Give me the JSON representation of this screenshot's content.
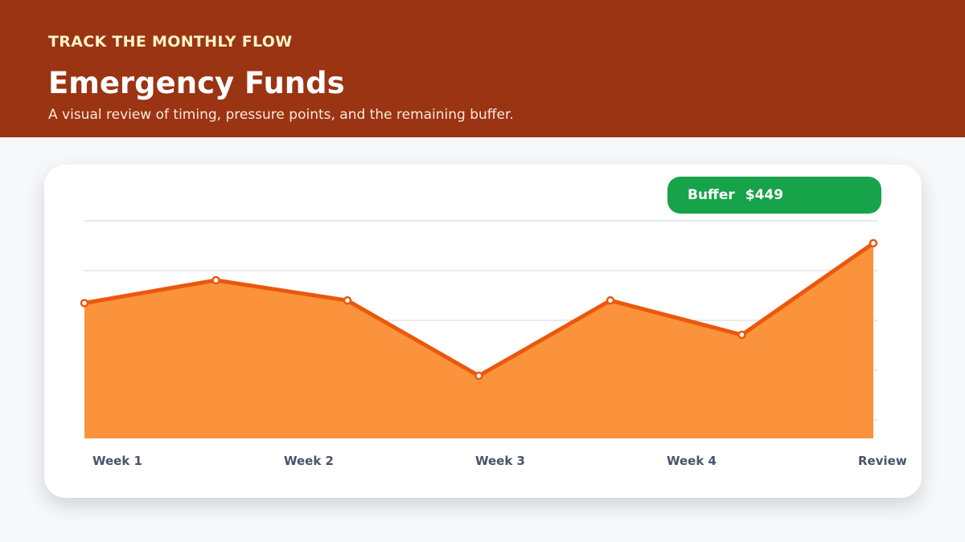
{
  "header": {
    "eyebrow": "TRACK THE MONTHLY FLOW",
    "title": "Emergency Funds",
    "subtitle": "A visual review of timing, pressure points, and the remaining buffer."
  },
  "badge": {
    "label": "Buffer",
    "value": "$449"
  },
  "colors": {
    "header_bg": "#9a3412",
    "area_fill": "#fb923c",
    "line": "#ea580c",
    "badge_bg": "#16a34a",
    "grid": "#d1d5db"
  },
  "chart_data": {
    "type": "area",
    "title": "",
    "xlabel": "",
    "ylabel": "",
    "tick_labels": [
      "Week 1",
      "Week 2",
      "Week 3",
      "Week 4",
      "Review"
    ],
    "x": [
      0,
      1,
      2,
      3,
      4,
      5,
      6
    ],
    "values": [
      0.622,
      0.727,
      0.634,
      0.288,
      0.634,
      0.476,
      0.897
    ],
    "ylim": [
      0,
      1
    ],
    "grid": true,
    "legend": "none"
  }
}
